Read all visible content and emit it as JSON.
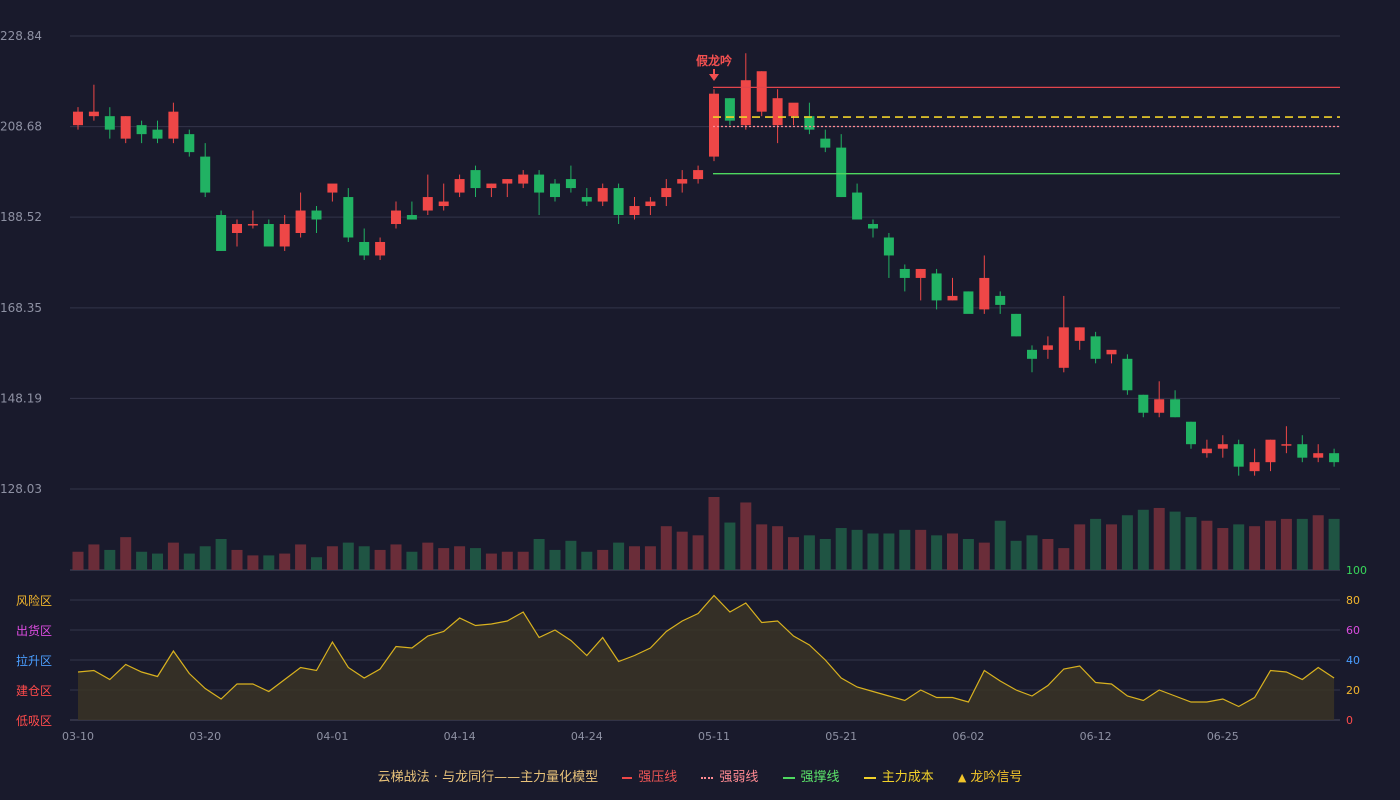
{
  "chart_data": {
    "type": "candlestick",
    "x_ticks": [
      "03-10",
      "03-20",
      "04-01",
      "04-14",
      "04-24",
      "05-11",
      "05-21",
      "06-02",
      "06-12",
      "06-25"
    ],
    "y_ticks": [
      "228.84",
      "208.68",
      "188.52",
      "168.35",
      "148.19",
      "128.03"
    ],
    "ylim": [
      128.03,
      228.84
    ],
    "annotation": {
      "label": "假龙吟",
      "index": 40
    },
    "candles": [
      {
        "o": 209,
        "h": 213,
        "l": 208,
        "c": 212
      },
      {
        "o": 211,
        "h": 218,
        "l": 210,
        "c": 212
      },
      {
        "o": 211,
        "h": 213,
        "l": 206,
        "c": 208
      },
      {
        "o": 206,
        "h": 211,
        "l": 205,
        "c": 211
      },
      {
        "o": 209,
        "h": 210,
        "l": 205,
        "c": 207
      },
      {
        "o": 208,
        "h": 210,
        "l": 205,
        "c": 206
      },
      {
        "o": 206,
        "h": 214,
        "l": 205,
        "c": 212
      },
      {
        "o": 207,
        "h": 208,
        "l": 202,
        "c": 203
      },
      {
        "o": 202,
        "h": 205,
        "l": 193,
        "c": 194
      },
      {
        "o": 189,
        "h": 190,
        "l": 181,
        "c": 181
      },
      {
        "o": 185,
        "h": 188,
        "l": 182,
        "c": 187
      },
      {
        "o": 187,
        "h": 190,
        "l": 186,
        "c": 187
      },
      {
        "o": 187,
        "h": 188,
        "l": 182,
        "c": 182
      },
      {
        "o": 182,
        "h": 189,
        "l": 181,
        "c": 187
      },
      {
        "o": 185,
        "h": 194,
        "l": 184,
        "c": 190
      },
      {
        "o": 190,
        "h": 191,
        "l": 185,
        "c": 188
      },
      {
        "o": 194,
        "h": 195,
        "l": 192,
        "c": 196
      },
      {
        "o": 193,
        "h": 195,
        "l": 183,
        "c": 184
      },
      {
        "o": 183,
        "h": 186,
        "l": 179,
        "c": 180
      },
      {
        "o": 180,
        "h": 184,
        "l": 179,
        "c": 183
      },
      {
        "o": 187,
        "h": 192,
        "l": 186,
        "c": 190
      },
      {
        "o": 189,
        "h": 192,
        "l": 188,
        "c": 188
      },
      {
        "o": 190,
        "h": 198,
        "l": 189,
        "c": 193
      },
      {
        "o": 191,
        "h": 196,
        "l": 190,
        "c": 192
      },
      {
        "o": 194,
        "h": 198,
        "l": 193,
        "c": 197
      },
      {
        "o": 199,
        "h": 200,
        "l": 193,
        "c": 195
      },
      {
        "o": 195,
        "h": 196,
        "l": 193,
        "c": 196
      },
      {
        "o": 196,
        "h": 197,
        "l": 193,
        "c": 197
      },
      {
        "o": 196,
        "h": 199,
        "l": 195,
        "c": 198
      },
      {
        "o": 198,
        "h": 199,
        "l": 189,
        "c": 194
      },
      {
        "o": 196,
        "h": 197,
        "l": 192,
        "c": 193
      },
      {
        "o": 197,
        "h": 200,
        "l": 194,
        "c": 195
      },
      {
        "o": 193,
        "h": 195,
        "l": 191,
        "c": 192
      },
      {
        "o": 192,
        "h": 196,
        "l": 191,
        "c": 195
      },
      {
        "o": 195,
        "h": 196,
        "l": 187,
        "c": 189
      },
      {
        "o": 189,
        "h": 193,
        "l": 188,
        "c": 191
      },
      {
        "o": 191,
        "h": 193,
        "l": 189,
        "c": 192
      },
      {
        "o": 193,
        "h": 197,
        "l": 191,
        "c": 195
      },
      {
        "o": 196,
        "h": 199,
        "l": 194,
        "c": 197
      },
      {
        "o": 197,
        "h": 200,
        "l": 196,
        "c": 199
      },
      {
        "o": 202,
        "h": 217,
        "l": 201,
        "c": 216
      },
      {
        "o": 215,
        "h": 215,
        "l": 209,
        "c": 210
      },
      {
        "o": 209,
        "h": 225,
        "l": 208,
        "c": 219
      },
      {
        "o": 212,
        "h": 221,
        "l": 211,
        "c": 221
      },
      {
        "o": 209,
        "h": 217,
        "l": 205,
        "c": 215
      },
      {
        "o": 211,
        "h": 213,
        "l": 209,
        "c": 214
      },
      {
        "o": 211,
        "h": 214,
        "l": 207,
        "c": 208
      },
      {
        "o": 206,
        "h": 208,
        "l": 203,
        "c": 204
      },
      {
        "o": 204,
        "h": 207,
        "l": 193,
        "c": 193
      },
      {
        "o": 194,
        "h": 196,
        "l": 189,
        "c": 188
      },
      {
        "o": 187,
        "h": 188,
        "l": 184,
        "c": 186
      },
      {
        "o": 184,
        "h": 185,
        "l": 175,
        "c": 180
      },
      {
        "o": 177,
        "h": 178,
        "l": 172,
        "c": 175
      },
      {
        "o": 175,
        "h": 177,
        "l": 170,
        "c": 177
      },
      {
        "o": 176,
        "h": 177,
        "l": 168,
        "c": 170
      },
      {
        "o": 170,
        "h": 175,
        "l": 170,
        "c": 171
      },
      {
        "o": 172,
        "h": 172,
        "l": 168,
        "c": 167
      },
      {
        "o": 168,
        "h": 180,
        "l": 167,
        "c": 175
      },
      {
        "o": 171,
        "h": 172,
        "l": 167,
        "c": 169
      },
      {
        "o": 167,
        "h": 167,
        "l": 162,
        "c": 162
      },
      {
        "o": 159,
        "h": 160,
        "l": 154,
        "c": 157
      },
      {
        "o": 159,
        "h": 162,
        "l": 157,
        "c": 160
      },
      {
        "o": 155,
        "h": 171,
        "l": 154,
        "c": 164
      },
      {
        "o": 161,
        "h": 164,
        "l": 159,
        "c": 164
      },
      {
        "o": 162,
        "h": 163,
        "l": 156,
        "c": 157
      },
      {
        "o": 158,
        "h": 158,
        "l": 156,
        "c": 159
      },
      {
        "o": 157,
        "h": 158,
        "l": 149,
        "c": 150
      },
      {
        "o": 149,
        "h": 149,
        "l": 144,
        "c": 145
      },
      {
        "o": 145,
        "h": 152,
        "l": 144,
        "c": 148
      },
      {
        "o": 148,
        "h": 150,
        "l": 144,
        "c": 144
      },
      {
        "o": 143,
        "h": 143,
        "l": 137,
        "c": 138
      },
      {
        "o": 136,
        "h": 139,
        "l": 135,
        "c": 137
      },
      {
        "o": 137,
        "h": 140,
        "l": 135,
        "c": 138
      },
      {
        "o": 138,
        "h": 139,
        "l": 131,
        "c": 133
      },
      {
        "o": 132,
        "h": 137,
        "l": 131,
        "c": 134
      },
      {
        "o": 134,
        "h": 139,
        "l": 132,
        "c": 139
      },
      {
        "o": 138,
        "h": 142,
        "l": 136,
        "c": 138
      },
      {
        "o": 138,
        "h": 140,
        "l": 134,
        "c": 135
      },
      {
        "o": 135,
        "h": 138,
        "l": 134,
        "c": 136
      },
      {
        "o": 136,
        "h": 137,
        "l": 133,
        "c": 134
      }
    ],
    "volume": [
      10,
      14,
      11,
      18,
      10,
      9,
      15,
      9,
      13,
      17,
      11,
      8,
      8,
      9,
      14,
      7,
      13,
      15,
      13,
      11,
      14,
      10,
      15,
      12,
      13,
      12,
      9,
      10,
      10,
      17,
      11,
      16,
      10,
      11,
      15,
      13,
      13,
      24,
      21,
      19,
      40,
      26,
      37,
      25,
      24,
      18,
      19,
      17,
      23,
      22,
      20,
      20,
      22,
      22,
      19,
      20,
      17,
      15,
      27,
      16,
      19,
      17,
      12,
      25,
      28,
      25,
      30,
      33,
      34,
      32,
      29,
      27,
      23,
      25,
      24,
      27,
      28,
      28,
      30,
      28
    ],
    "lines": [
      {
        "name": "强压线",
        "value": 217.4
      },
      {
        "name": "强弱线",
        "value": 208.7
      },
      {
        "name": "强撑线",
        "value": 198.2
      },
      {
        "name": "主力成本",
        "value": 210.8
      }
    ],
    "indicator": {
      "ylim": [
        0,
        100
      ],
      "ticks": [
        "100",
        "80",
        "60",
        "40",
        "20",
        "0"
      ],
      "zones": [
        "风险区",
        "出货区",
        "拉升区",
        "建仓区",
        "低吸区"
      ],
      "values": [
        32,
        33,
        27,
        37,
        32,
        29,
        46,
        31,
        21,
        14,
        24,
        24,
        19,
        27,
        35,
        33,
        52,
        35,
        28,
        34,
        49,
        48,
        56,
        59,
        68,
        63,
        64,
        66,
        72,
        55,
        60,
        53,
        43,
        55,
        39,
        43,
        48,
        59,
        66,
        71,
        83,
        72,
        78,
        65,
        66,
        56,
        50,
        40,
        28,
        22,
        19,
        16,
        13,
        20,
        15,
        15,
        12,
        33,
        26,
        20,
        16,
        23,
        34,
        36,
        25,
        24,
        16,
        13,
        20,
        16,
        12,
        12,
        14,
        9,
        15,
        33,
        32,
        27,
        35,
        28
      ]
    },
    "legend_title": "云梯战法 · 与龙同行——主力量化模型",
    "legend": [
      "强压线",
      "强弱线",
      "强撑线",
      "主力成本",
      "龙吟信号"
    ]
  },
  "colors": {
    "up": "#ee4747",
    "down": "#21b263",
    "vol_up": "#6a2d39",
    "vol_down": "#1f5443",
    "press": "#e2454c",
    "weak": "#ff8a92",
    "support": "#4ed85f",
    "cost": "#f1d12a",
    "indicator_line": "#d9b21f",
    "zone_risk": "#f3b62c",
    "zone_dist": "#dc4ce0",
    "zone_pull": "#4a9eff",
    "zone_build": "#ff4b4b",
    "zone_low": "#ff4b4b"
  }
}
